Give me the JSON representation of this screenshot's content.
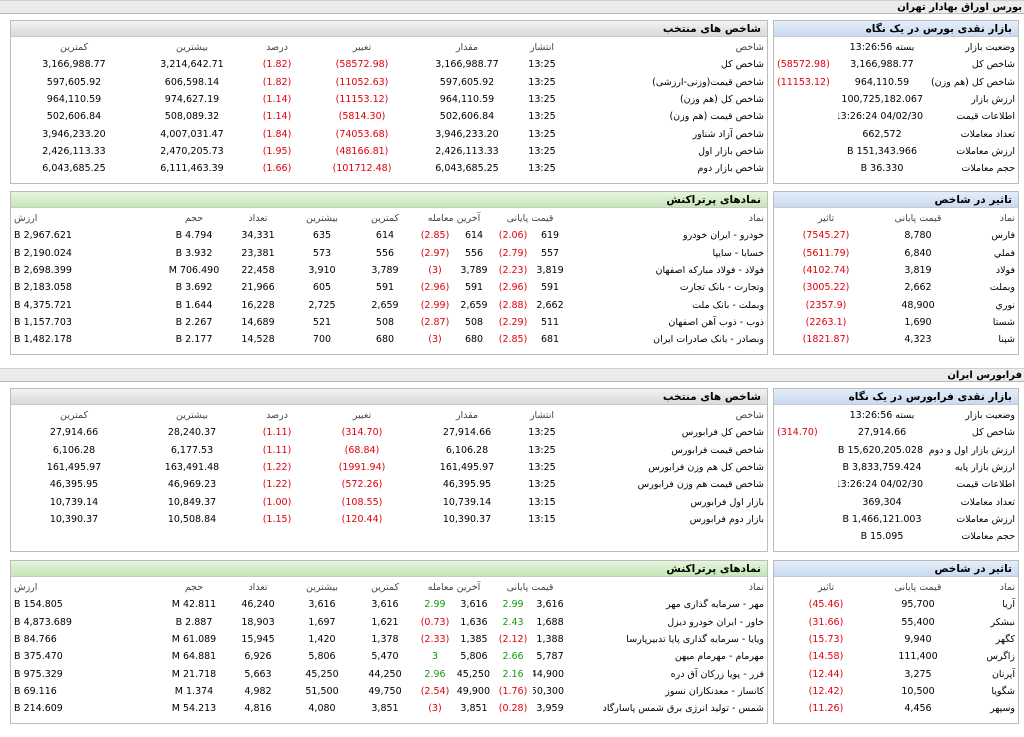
{
  "sections": {
    "bourse_title": "بورس اوراق بهادار تهران",
    "farabourse_title": "فرابورس ایران"
  },
  "colors": {
    "negative": "#e0000a",
    "positive": "#109a10",
    "header_blue": "#c9daf1",
    "header_green": "#c4e6b6"
  },
  "bourse": {
    "overview": {
      "title": "بازار نقدی بورس در یک نگاه",
      "rows": [
        {
          "label": "وضعیت بازار",
          "value": "بسته 13:26:56",
          "change": ""
        },
        {
          "label": "شاخص کل",
          "value": "3,166,988.77",
          "change": "(58572.98)"
        },
        {
          "label": "شاخص کل (هم وزن)",
          "value": "964,110.59",
          "change": "(11153.12)"
        },
        {
          "label": "ارزش بازار",
          "value": "100,725,182.067 B",
          "change": ""
        },
        {
          "label": "اطلاعات قیمت",
          "value": "04/02/30 13:26:24",
          "change": ""
        },
        {
          "label": "تعداد معاملات",
          "value": "662,572",
          "change": ""
        },
        {
          "label": "ارزش معاملات",
          "value": "151,343.966 B",
          "change": ""
        },
        {
          "label": "حجم معاملات",
          "value": "36.330 B",
          "change": ""
        }
      ]
    },
    "indices": {
      "title": "شاخص های منتخب",
      "headers": [
        "شاخص",
        "انتشار",
        "مقدار",
        "تغییر",
        "درصد",
        "بیشترین",
        "کمترین"
      ],
      "rows": [
        [
          "شاخص کل",
          "13:25",
          "3,166,988.77",
          "(58572.98)",
          "(1.82)",
          "3,214,642.71",
          "3,166,988.77"
        ],
        [
          "شاخص قیمت(وزنی-ارزشی)",
          "13:25",
          "597,605.92",
          "(11052.63)",
          "(1.82)",
          "606,598.14",
          "597,605.92"
        ],
        [
          "شاخص کل (هم وزن)",
          "13:25",
          "964,110.59",
          "(11153.12)",
          "(1.14)",
          "974,627.19",
          "964,110.59"
        ],
        [
          "شاخص قیمت (هم وزن)",
          "13:25",
          "502,606.84",
          "(5814.30)",
          "(1.14)",
          "508,089.32",
          "502,606.84"
        ],
        [
          "شاخص آزاد شناور",
          "13:25",
          "3,946,233.20",
          "(74053.68)",
          "(1.84)",
          "4,007,031.47",
          "3,946,233.20"
        ],
        [
          "شاخص بازار اول",
          "13:25",
          "2,426,113.33",
          "(48166.81)",
          "(1.95)",
          "2,470,205.73",
          "2,426,113.33"
        ],
        [
          "شاخص بازار دوم",
          "13:25",
          "6,043,685.25",
          "(101712.48)",
          "(1.66)",
          "6,111,463.39",
          "6,043,685.25"
        ]
      ]
    },
    "impact": {
      "title": "تاثیر در شاخص",
      "headers": [
        "نماد",
        "قیمت پایانی",
        "تاثیر"
      ],
      "rows": [
        [
          "فارس",
          "8,780",
          "(7545.27)"
        ],
        [
          "فملي",
          "6,840",
          "(5611.79)"
        ],
        [
          "فولاد",
          "3,819",
          "(4102.74)"
        ],
        [
          "وبملت",
          "2,662",
          "(3005.22)"
        ],
        [
          "نوري",
          "48,900",
          "(2357.9)"
        ],
        [
          "شستا",
          "1,690",
          "(2263.1)"
        ],
        [
          "شپنا",
          "4,323",
          "(1821.87)"
        ]
      ]
    },
    "active": {
      "title": "نمادهای پرتراکنش",
      "headers": [
        "نماد",
        "قیمت پایانی",
        "آخرین معامله",
        "کمترین",
        "بیشترین",
        "تعداد",
        "حجم",
        "ارزش"
      ],
      "rows": [
        [
          "خودرو - ایران خودرو",
          "619",
          "(2.06)",
          "614",
          "(2.85)",
          "614",
          "635",
          "34,331",
          "4.794 B",
          "2,967.621 B"
        ],
        [
          "خسابا - سایپا",
          "557",
          "(2.79)",
          "556",
          "(2.97)",
          "556",
          "573",
          "23,381",
          "3.932 B",
          "2,190.024 B"
        ],
        [
          "فولاد - فولاد مبارکه اصفهان",
          "3,819",
          "(2.23)",
          "3,789",
          "(3)",
          "3,789",
          "3,910",
          "22,458",
          "706.490 M",
          "2,698.399 B"
        ],
        [
          "وتجارت - بانک تجارت",
          "591",
          "(2.96)",
          "591",
          "(2.96)",
          "591",
          "605",
          "21,966",
          "3.692 B",
          "2,183.058 B"
        ],
        [
          "وبملت - بانک ملت",
          "2,662",
          "(2.88)",
          "2,659",
          "(2.99)",
          "2,659",
          "2,725",
          "16,228",
          "1.644 B",
          "4,375.721 B"
        ],
        [
          "ذوب - ذوب آهن اصفهان",
          "511",
          "(2.29)",
          "508",
          "(2.87)",
          "508",
          "521",
          "14,689",
          "2.267 B",
          "1,157.703 B"
        ],
        [
          "وبصادر - بانک صادرات ایران",
          "681",
          "(2.85)",
          "680",
          "(3)",
          "680",
          "700",
          "14,528",
          "2.177 B",
          "1,482.178 B"
        ]
      ]
    }
  },
  "farabourse": {
    "overview": {
      "title": "بازار نقدی فرابورس در یک نگاه",
      "rows": [
        {
          "label": "وضعیت بازار",
          "value": "بسته 13:26:56",
          "change": ""
        },
        {
          "label": "شاخص کل",
          "value": "27,914.66",
          "change": "(314.70)"
        },
        {
          "label": "ارزش بازار اول و دوم",
          "value": "15,620,205.028 B",
          "change": ""
        },
        {
          "label": "ارزش بازار پایه",
          "value": "3,833,759.424 B",
          "change": ""
        },
        {
          "label": "اطلاعات قیمت",
          "value": "04/02/30 13:26:24",
          "change": ""
        },
        {
          "label": "تعداد معاملات",
          "value": "369,304",
          "change": ""
        },
        {
          "label": "ارزش معاملات",
          "value": "1,466,121.003 B",
          "change": ""
        },
        {
          "label": "حجم معاملات",
          "value": "15.095 B",
          "change": ""
        }
      ]
    },
    "indices": {
      "title": "شاخص های منتخب",
      "headers": [
        "شاخص",
        "انتشار",
        "مقدار",
        "تغییر",
        "درصد",
        "بیشترین",
        "کمترین"
      ],
      "rows": [
        [
          "شاخص کل فرابورس",
          "13:25",
          "27,914.66",
          "(314.70)",
          "(1.11)",
          "28,240.37",
          "27,914.66"
        ],
        [
          "شاخص قیمت فرابورس",
          "13:25",
          "6,106.28",
          "(68.84)",
          "(1.11)",
          "6,177.53",
          "6,106.28"
        ],
        [
          "شاخص کل هم وزن فرابورس",
          "13:25",
          "161,495.97",
          "(1991.94)",
          "(1.22)",
          "163,491.48",
          "161,495.97"
        ],
        [
          "شاخص قیمت هم وزن فرابورس",
          "13:25",
          "46,395.95",
          "(572.26)",
          "(1.22)",
          "46,969.23",
          "46,395.95"
        ],
        [
          "بازار اول فرابورس",
          "13:15",
          "10,739.14",
          "(108.55)",
          "(1.00)",
          "10,849.37",
          "10,739.14"
        ],
        [
          "بازار دوم فرابورس",
          "13:15",
          "10,390.37",
          "(120.44)",
          "(1.15)",
          "10,508.84",
          "10,390.37"
        ]
      ]
    },
    "impact": {
      "title": "تاثیر در شاخص",
      "headers": [
        "نماد",
        "قیمت پایانی",
        "تاثیر"
      ],
      "rows": [
        [
          "آريا",
          "95,700",
          "(45.46)"
        ],
        [
          "نبشكر",
          "55,400",
          "(31.66)"
        ],
        [
          "كگهر",
          "9,940",
          "(15.73)"
        ],
        [
          "زاگرس",
          "111,400",
          "(14.58)"
        ],
        [
          "آپرنان",
          "3,275",
          "(12.44)"
        ],
        [
          "شگويا",
          "10,500",
          "(12.42)"
        ],
        [
          "وسپهر",
          "4,456",
          "(11.26)"
        ]
      ]
    },
    "active": {
      "title": "نمادهای پرتراکنش",
      "headers": [
        "نماد",
        "قیمت پایانی",
        "آخرین معامله",
        "کمترین",
        "بیشترین",
        "تعداد",
        "حجم",
        "ارزش"
      ],
      "rows": [
        [
          "مهر - سرمایه گذاری مهر",
          "3,616",
          "2.99",
          "3,616",
          "2.99",
          "3,616",
          "3,616",
          "46,240",
          "42.811 M",
          "154.805 B"
        ],
        [
          "خاور - ایران خودرو دیزل",
          "1,688",
          "2.43",
          "1,636",
          "(0.73)",
          "1,621",
          "1,697",
          "18,903",
          "2.887 B",
          "4,873.689 B"
        ],
        [
          "ویایا - سرمایه گذاری پایا تدبیرپارسا",
          "1,388",
          "(2.12)",
          "1,385",
          "(2.33)",
          "1,378",
          "1,420",
          "15,945",
          "61.089 M",
          "84.766 B"
        ],
        [
          "مهرمام - مهرمام میهن",
          "5,787",
          "2.66",
          "5,806",
          "3",
          "5,470",
          "5,806",
          "6,926",
          "64.881 M",
          "375.470 B"
        ],
        [
          "فرر - پویا زرکان آق دره",
          "44,900",
          "2.16",
          "45,250",
          "2.96",
          "44,250",
          "45,250",
          "5,663",
          "21.718 M",
          "975.329 B"
        ],
        [
          "کانساز - معدنکاران نسوز",
          "50,300",
          "(1.76)",
          "49,900",
          "(2.54)",
          "49,750",
          "51,500",
          "4,982",
          "1.374 M",
          "69.116 B"
        ],
        [
          "شمس - تولید انرژی برق شمس پاسارگاد",
          "3,959",
          "(0.28)",
          "3,851",
          "(3)",
          "3,851",
          "4,080",
          "4,816",
          "54.213 M",
          "214.609 B"
        ]
      ]
    }
  }
}
